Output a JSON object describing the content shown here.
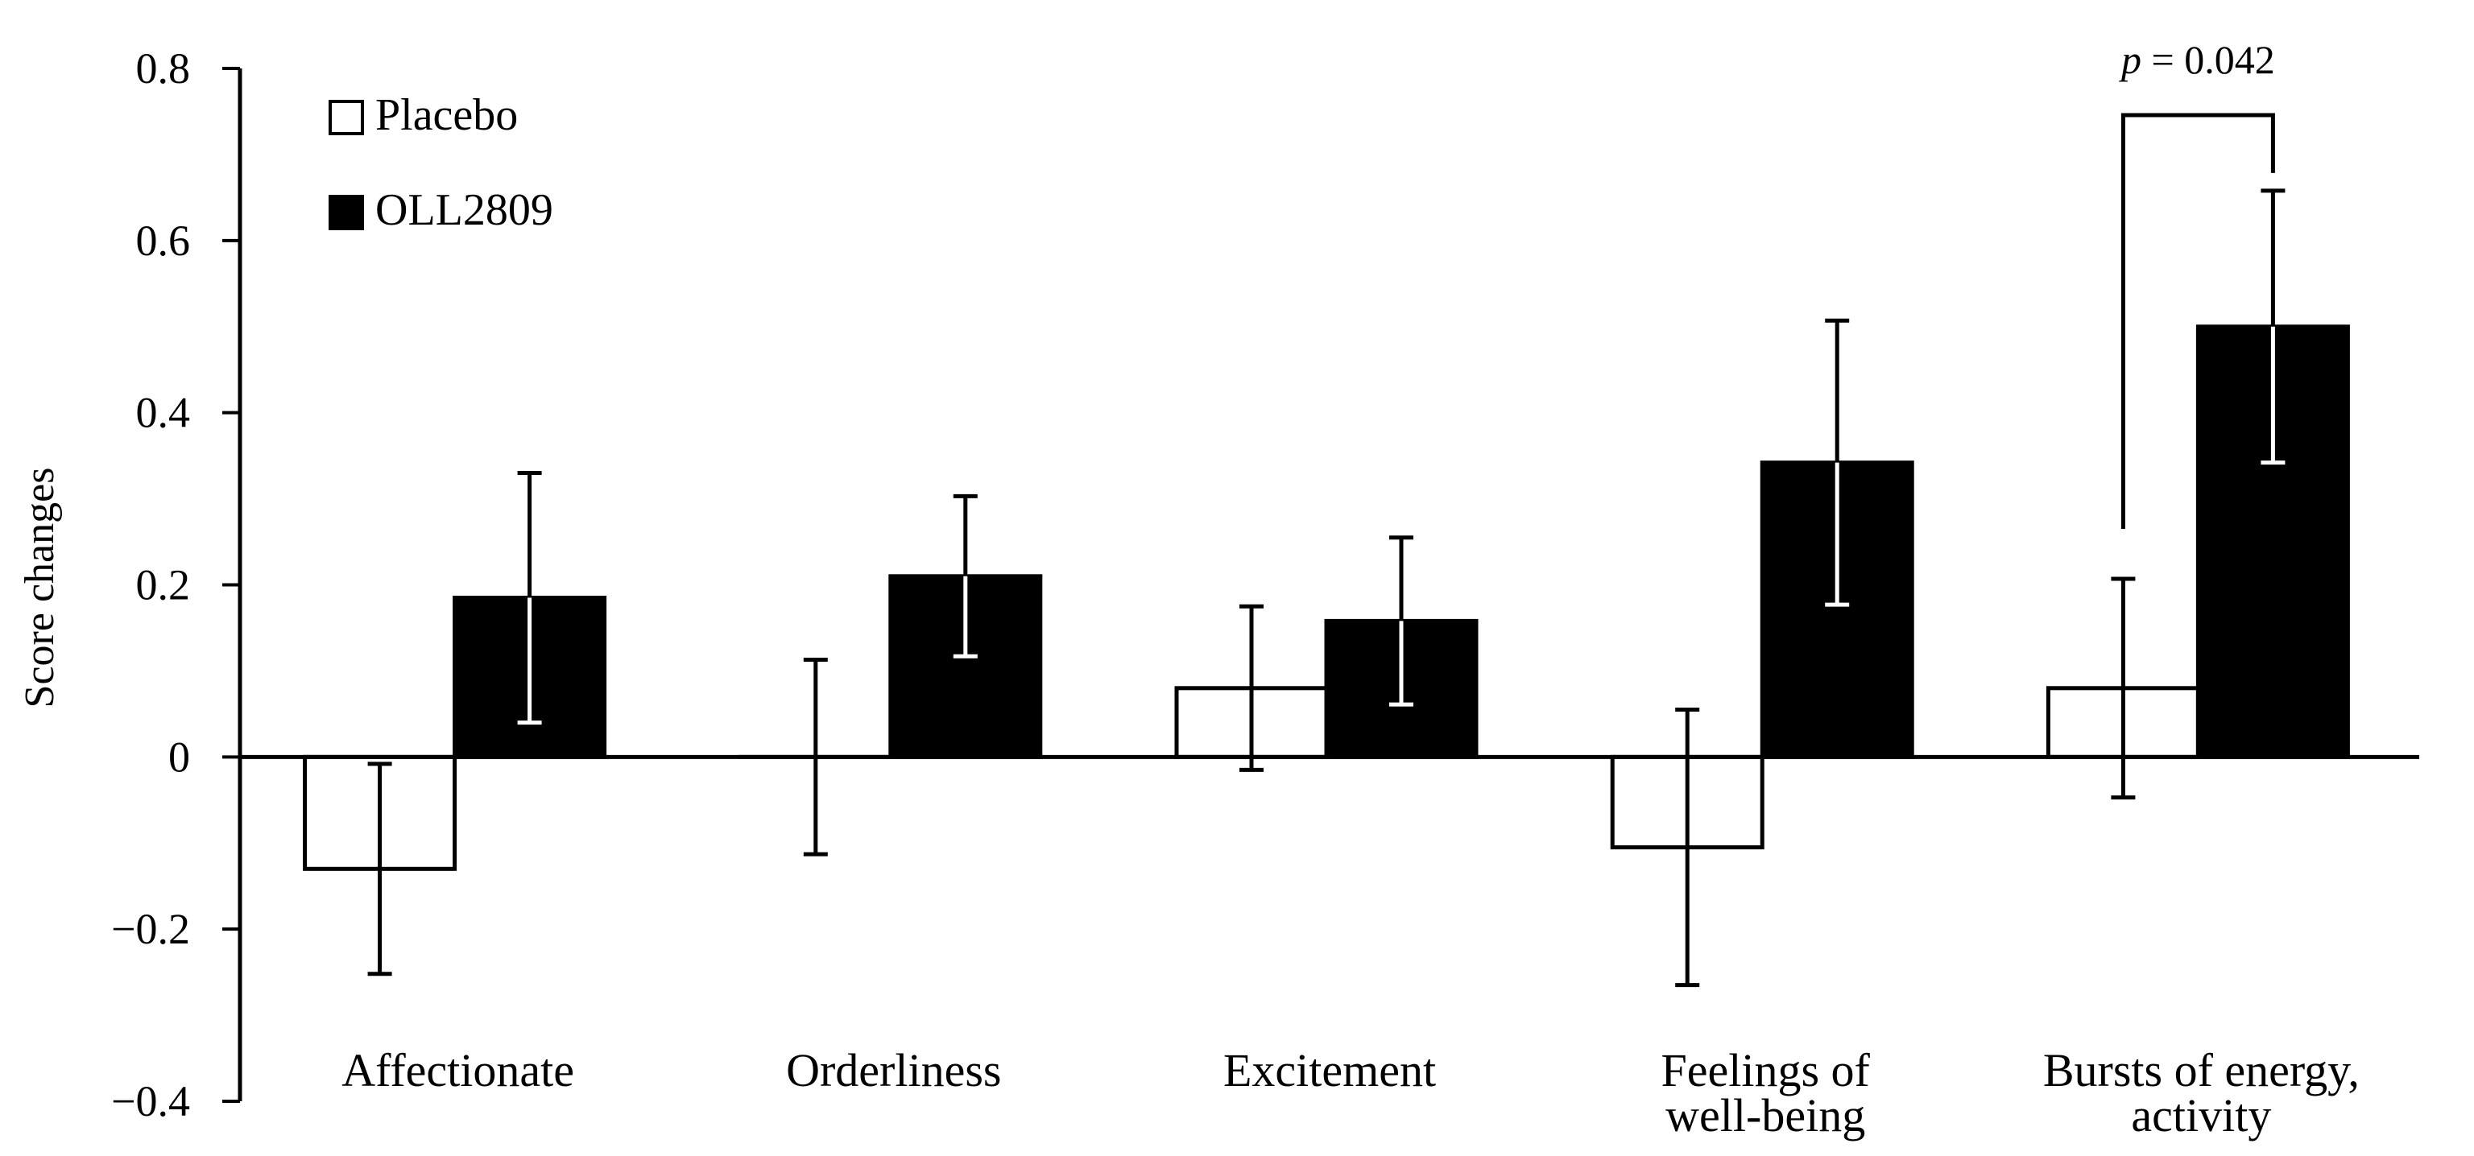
{
  "chart_data": {
    "type": "bar",
    "title": "",
    "xlabel": "",
    "ylabel": "Score changes",
    "ylim": [
      -0.4,
      0.8
    ],
    "yticks": [
      -0.4,
      -0.2,
      0,
      0.2,
      0.4,
      0.6,
      0.8
    ],
    "ytick_labels": [
      "−0.4",
      "−0.2",
      "0",
      "0.2",
      "0.4",
      "0.6",
      "0.8"
    ],
    "grid": false,
    "legend_position": "top-left",
    "categories": [
      [
        "Affectionate"
      ],
      [
        "Orderliness"
      ],
      [
        "Excitement"
      ],
      [
        "Feelings of",
        "well-being"
      ],
      [
        "Bursts of energy,",
        "activity"
      ]
    ],
    "series": [
      {
        "name": "Placebo",
        "fill": "#ffffff",
        "values": [
          -0.13,
          0.0,
          0.08,
          -0.105,
          0.08
        ],
        "errors": [
          0.122,
          0.113,
          0.095,
          0.16,
          0.127
        ]
      },
      {
        "name": "OLL2809",
        "fill": "#000000",
        "values": [
          0.185,
          0.21,
          0.158,
          0.342,
          0.5
        ],
        "errors": [
          0.145,
          0.093,
          0.097,
          0.165,
          0.158
        ]
      }
    ],
    "annotations": [
      {
        "category_index": 4,
        "text_italic": "p",
        "text_rest": " = 0.042"
      }
    ]
  }
}
